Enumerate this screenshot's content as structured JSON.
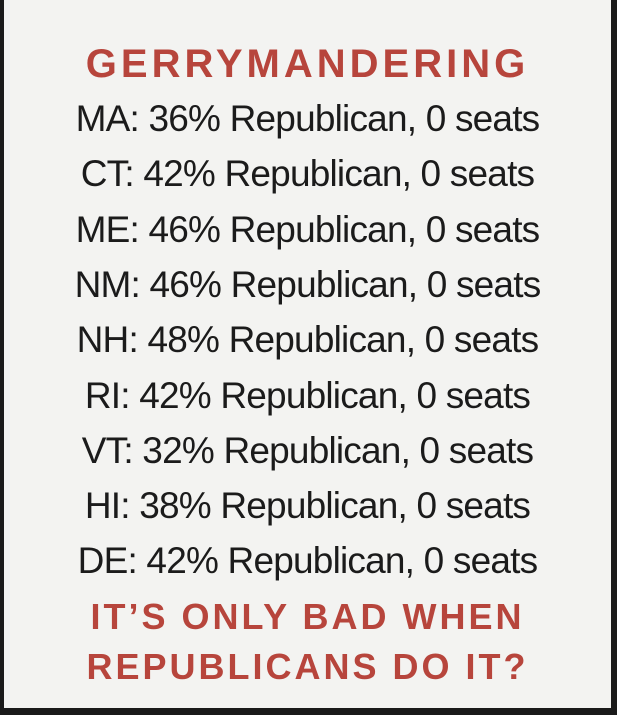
{
  "title": "GERRYMANDERING",
  "lines": [
    "MA: 36% Republican, 0 seats",
    "CT: 42% Republican, 0 seats",
    "ME: 46% Republican, 0 seats",
    "NM: 46% Republican, 0 seats",
    "NH: 48% Republican, 0 seats",
    "RI: 42% Republican, 0 seats",
    "VT: 32% Republican, 0 seats",
    "HI: 38% Republican, 0 seats",
    "DE: 42% Republican, 0 seats"
  ],
  "footer": [
    "IT’S ONLY BAD WHEN",
    "REPUBLICANS DO IT?"
  ]
}
